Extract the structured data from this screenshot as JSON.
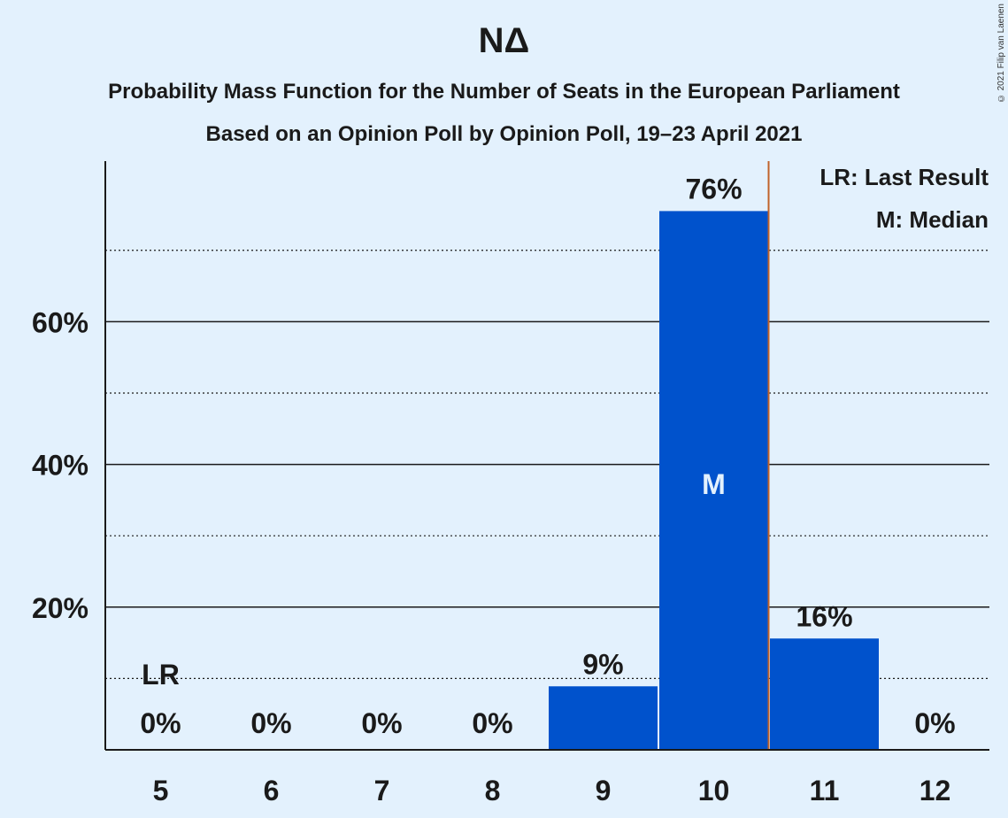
{
  "chart_data": {
    "type": "bar",
    "title": "ΝΔ",
    "subtitle_lines": [
      "Probability Mass Function for the Number of Seats in the European Parliament",
      "Based on an Opinion Poll by Opinion Poll, 19–23 April 2021"
    ],
    "copyright": "© 2021 Filip van Laenen",
    "categories": [
      5,
      6,
      7,
      8,
      9,
      10,
      11,
      12
    ],
    "values": [
      0,
      0,
      0,
      0,
      8.9,
      75.5,
      15.6,
      0
    ],
    "data_labels": [
      "0%",
      "0%",
      "0%",
      "0%",
      "9%",
      "76%",
      "16%",
      "0%"
    ],
    "ylim": [
      0,
      82.5
    ],
    "y_major_ticks": [
      20,
      40,
      60
    ],
    "y_tick_labels": [
      "20%",
      "40%",
      "60%"
    ],
    "y_minor_gridlines": [
      10,
      30,
      50,
      70
    ],
    "last_result": {
      "seats": 5,
      "label": "LR"
    },
    "median": {
      "seats": 10,
      "label": "M"
    },
    "majority_line_after": 10,
    "legend": [
      "LR: Last Result",
      "M: Median"
    ],
    "legend_position": "top-right",
    "colors": {
      "bar": "#0052cc",
      "background": "#e3f1fd",
      "majority_line": "#c0632a",
      "median_text": "#e3f1fd"
    }
  }
}
